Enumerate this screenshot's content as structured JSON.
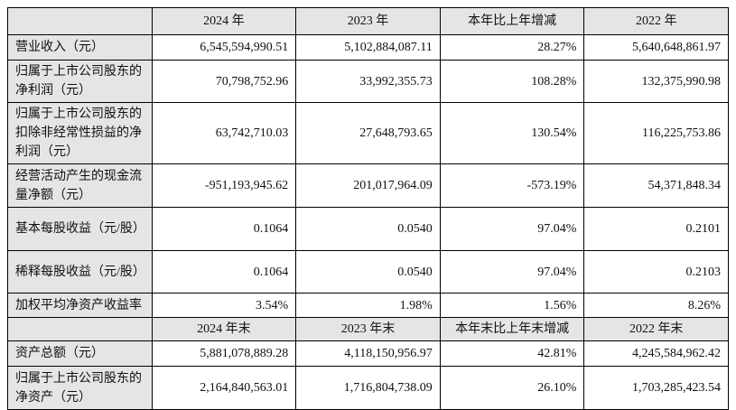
{
  "colors": {
    "header_bg": "#e5e5e5",
    "label_column_bg": "#e5e5e5",
    "border": "#000000",
    "page_bg": "#ffffff",
    "text": "#111111"
  },
  "table": {
    "header1": [
      "",
      "2024 年",
      "2023 年",
      "本年比上年增减",
      "2022 年"
    ],
    "rows1": [
      {
        "label": "营业收入（元）",
        "values": [
          "6,545,594,990.51",
          "5,102,884,087.11",
          "28.27%",
          "5,640,648,861.97"
        ]
      },
      {
        "label": "归属于上市公司股东的净利润（元）",
        "values": [
          "70,798,752.96",
          "33,992,355.73",
          "108.28%",
          "132,375,990.98"
        ]
      },
      {
        "label": "归属于上市公司股东的扣除非经常性损益的净利润（元）",
        "values": [
          "63,742,710.03",
          "27,648,793.65",
          "130.54%",
          "116,225,753.86"
        ]
      },
      {
        "label": "经营活动产生的现金流量净额（元）",
        "values": [
          "-951,193,945.62",
          "201,017,964.09",
          "-573.19%",
          "54,371,848.34"
        ]
      },
      {
        "label": "基本每股收益（元/股）",
        "values": [
          "0.1064",
          "0.0540",
          "97.04%",
          "0.2101"
        ]
      },
      {
        "label": "稀释每股收益（元/股）",
        "values": [
          "0.1064",
          "0.0540",
          "97.04%",
          "0.2103"
        ]
      },
      {
        "label": "加权平均净资产收益率",
        "values": [
          "3.54%",
          "1.98%",
          "1.56%",
          "8.26%"
        ]
      }
    ],
    "header2": [
      "",
      "2024 年末",
      "2023 年末",
      "本年末比上年末增减",
      "2022 年末"
    ],
    "rows2": [
      {
        "label": "资产总额（元）",
        "values": [
          "5,881,078,889.28",
          "4,118,150,956.97",
          "42.81%",
          "4,245,584,962.42"
        ]
      },
      {
        "label": "归属于上市公司股东的净资产（元）",
        "values": [
          "2,164,840,563.01",
          "1,716,804,738.09",
          "26.10%",
          "1,703,285,423.54"
        ]
      }
    ]
  }
}
